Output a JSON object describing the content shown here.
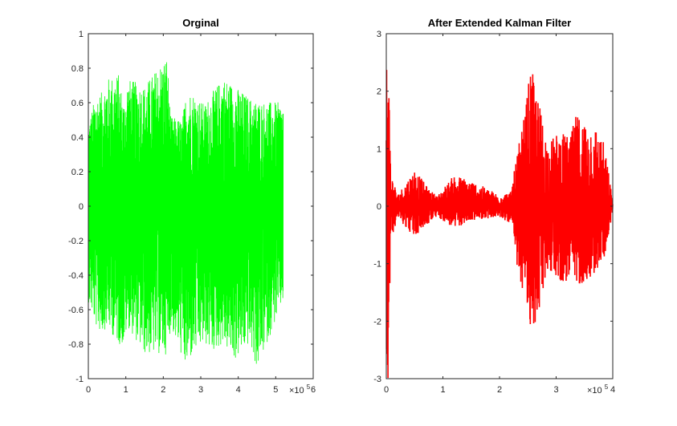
{
  "chart_data": [
    {
      "type": "line",
      "title": "Orginal",
      "xlabel": "",
      "ylabel": "",
      "xlim": [
        0,
        6
      ],
      "ylim": [
        -1,
        1
      ],
      "x_ticks": [
        "0",
        "1",
        "2",
        "3",
        "4",
        "5",
        "6"
      ],
      "y_ticks": [
        "-1",
        "-0.8",
        "-0.6",
        "-0.4",
        "-0.2",
        "0",
        "0.2",
        "0.4",
        "0.6",
        "0.8",
        "1"
      ],
      "x_exponent": {
        "base": "×10",
        "power": "5"
      },
      "color": "#00ff00",
      "grid": false,
      "series": [
        {
          "x": [
            0,
            0.2,
            0.35,
            0.5,
            0.8,
            0.95,
            1.05,
            1.5,
            2.1,
            2.2,
            2.5,
            2.6,
            2.75,
            3.1,
            3.3,
            3.6,
            3.9,
            4.3,
            4.5,
            5.2
          ],
          "y": [
            0.48,
            0.65,
            0.66,
            0.74,
            0.77,
            0.6,
            0.74,
            0.7,
            0.88,
            0.52,
            0.5,
            0.64,
            0.67,
            0.59,
            0.66,
            0.75,
            0.7,
            0.63,
            0.61,
            0.6
          ],
          "y_min": [
            -0.55,
            -0.7,
            -0.74,
            -0.7,
            -0.8,
            -0.81,
            -0.7,
            -0.86,
            -0.86,
            -0.7,
            -0.88,
            -0.95,
            -0.88,
            -0.8,
            -0.85,
            -0.8,
            -0.9,
            -0.8,
            -0.95,
            -0.55
          ]
        }
      ]
    },
    {
      "type": "line",
      "title": "After Extended Kalman Filter",
      "xlabel": "",
      "ylabel": "",
      "xlim": [
        0,
        4
      ],
      "ylim": [
        -3,
        3
      ],
      "x_ticks": [
        "0",
        "1",
        "2",
        "3",
        "4"
      ],
      "y_ticks": [
        "-3",
        "-2",
        "-1",
        "0",
        "1",
        "2",
        "3"
      ],
      "x_exponent": {
        "base": "×10",
        "power": "5"
      },
      "color": "#ff0000",
      "grid": false,
      "series": [
        {
          "x": [
            0,
            0.03,
            0.08,
            0.2,
            0.5,
            0.75,
            0.9,
            1.2,
            1.5,
            1.7,
            2.0,
            2.2,
            2.3,
            2.45,
            2.55,
            2.75,
            2.85,
            3.05,
            3.25,
            3.35,
            3.7,
            3.85,
            4.0
          ],
          "y": [
            3.0,
            3.0,
            0.6,
            0.2,
            0.65,
            0.3,
            0.18,
            0.55,
            0.45,
            0.35,
            0.2,
            0.25,
            0.85,
            1.65,
            2.45,
            1.6,
            1.1,
            1.3,
            1.2,
            1.6,
            1.4,
            1.1,
            0.1
          ],
          "y_min": [
            -3.0,
            -3.0,
            -0.6,
            -0.2,
            -0.55,
            -0.3,
            -0.18,
            -0.4,
            -0.25,
            -0.22,
            -0.2,
            -0.3,
            -1.2,
            -1.55,
            -2.4,
            -1.65,
            -1.1,
            -1.3,
            -1.4,
            -1.4,
            -1.2,
            -0.9,
            -0.1
          ]
        }
      ]
    }
  ]
}
